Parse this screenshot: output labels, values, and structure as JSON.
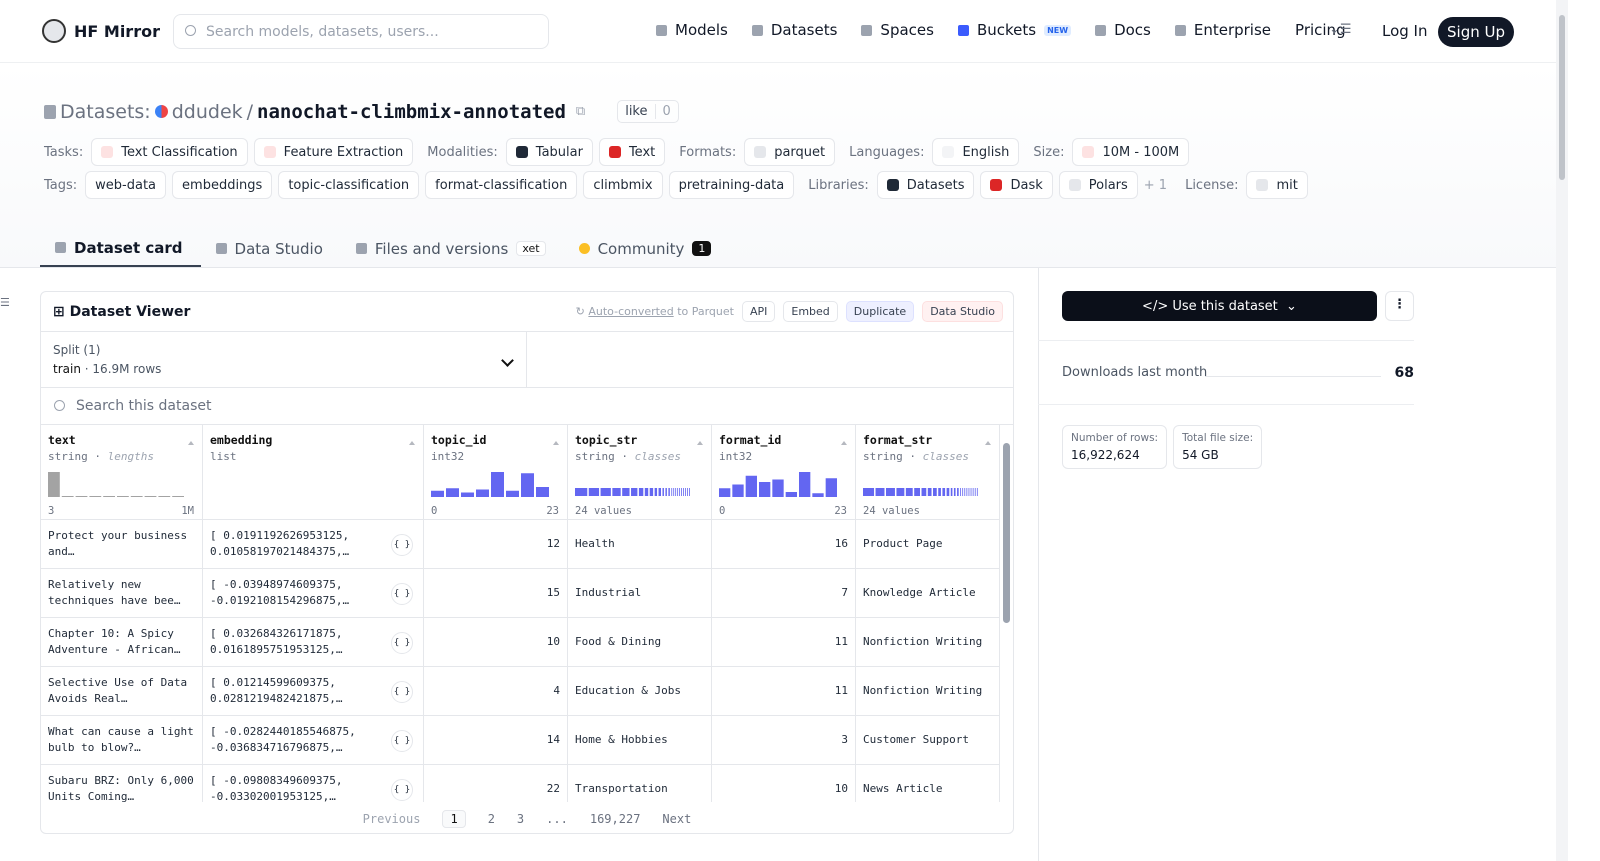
{
  "nav": {
    "brand": "HF Mirror",
    "search_placeholder": "Search models, datasets, users...",
    "links": [
      "Models",
      "Datasets",
      "Spaces",
      "Buckets",
      "Docs",
      "Enterprise",
      "Pricing"
    ],
    "new_badge": "NEW",
    "login": "Log In",
    "signup": "Sign Up"
  },
  "header": {
    "prefix": "Datasets:",
    "owner": "ddudek",
    "sep": "/",
    "name": "nanochat-climbmix-annotated",
    "like": "like",
    "likes": 0
  },
  "meta": {
    "rows": [
      [
        {
          "label": "Tasks:",
          "items": [
            "Text Classification",
            "Feature Extraction"
          ]
        },
        {
          "label": "Modalities:",
          "items": [
            "Tabular",
            "Text"
          ]
        },
        {
          "label": "Formats:",
          "items": [
            "parquet"
          ]
        },
        {
          "label": "Languages:",
          "items": [
            "English"
          ]
        },
        {
          "label": "Size:",
          "items": [
            "10M - 100M"
          ]
        }
      ],
      [
        {
          "label": "Tags:",
          "items": [
            "web-data",
            "embeddings",
            "topic-classification",
            "format-classification",
            "climbmix",
            "pretraining-data"
          ]
        },
        {
          "label": "Libraries:",
          "items": [
            "Datasets",
            "Dask",
            "Polars"
          ],
          "more": "+ 1"
        },
        {
          "label": "License:",
          "items": [
            "mit"
          ]
        }
      ]
    ]
  },
  "tabs": [
    {
      "label": "Dataset card"
    },
    {
      "label": "Data Studio"
    },
    {
      "label": "Files and versions",
      "badge": "xet"
    },
    {
      "label": "Community",
      "badge": 1
    }
  ],
  "viewer": {
    "title": "Dataset Viewer",
    "autoconverted": "Auto-converted",
    "autoconverted_suffix": "to Parquet",
    "actions": [
      "API",
      "Embed",
      "Duplicate",
      "Data Studio"
    ],
    "split_label": "Split (1)",
    "split_name": "train",
    "split_sep": "·",
    "split_rows": "16.9M rows",
    "search": "Search this dataset",
    "type_sep": "·",
    "columns": [
      {
        "name": "text",
        "type": "string",
        "stat": "lengths",
        "min": "3",
        "max": "1M",
        "bars": [
          100,
          4,
          4,
          4,
          4,
          4,
          4,
          4,
          4,
          4
        ]
      },
      {
        "name": "embedding",
        "type": "list"
      },
      {
        "name": "topic_id",
        "type": "int32",
        "min": "0",
        "max": "23",
        "bars": [
          25,
          35,
          18,
          30,
          100,
          25,
          95,
          40
        ]
      },
      {
        "name": "topic_str",
        "type": "string",
        "stat": "classes",
        "summary": "24 values",
        "classes": [
          14,
          12,
          12,
          10,
          9,
          8,
          6,
          5,
          5,
          4,
          4,
          3,
          3,
          3,
          2,
          2,
          2,
          2,
          2,
          2,
          2,
          2,
          2,
          2
        ]
      },
      {
        "name": "format_id",
        "type": "int32",
        "min": "0",
        "max": "23",
        "bars": [
          35,
          50,
          85,
          60,
          70,
          20,
          100,
          15,
          75
        ]
      },
      {
        "name": "format_str",
        "type": "string",
        "stat": "classes",
        "summary": "24 values",
        "classes": [
          12,
          10,
          10,
          9,
          8,
          7,
          6,
          5,
          5,
          4,
          4,
          4,
          3,
          3,
          3,
          2,
          2,
          2,
          2,
          2,
          2,
          2,
          2,
          2
        ]
      }
    ],
    "rows": [
      [
        "Protect your business and…",
        "[ 0.0191192626953125, 0.01058197021484375,…",
        12,
        "Health",
        16,
        "Product Page"
      ],
      [
        "Relatively new techniques have bee…",
        "[ -0.03948974609375, -0.0192108154296875,…",
        15,
        "Industrial",
        7,
        "Knowledge Article"
      ],
      [
        "Chapter 10: A Spicy Adventure - African…",
        "[ 0.032684326171875, 0.0161895751953125,…",
        10,
        "Food & Dining",
        11,
        "Nonfiction Writing"
      ],
      [
        "Selective Use of Data Avoids Real…",
        "[ 0.01214599609375, 0.0281219482421875,…",
        4,
        "Education & Jobs",
        11,
        "Nonfiction Writing"
      ],
      [
        "What can cause a light bulb to blow?…",
        "[ -0.0282440185546875, -0.036834716796875,…",
        14,
        "Home & Hobbies",
        3,
        "Customer Support"
      ],
      [
        "Subaru BRZ: Only 6,000 Units Coming…",
        "[ -0.09808349609375, -0.03302001953125,…",
        22,
        "Transportation",
        10,
        "News Article"
      ]
    ],
    "pagination": {
      "previous": "Previous",
      "pages": [
        1,
        2,
        3
      ],
      "ellipsis": "...",
      "last": "169,227",
      "next": "Next"
    }
  },
  "sidebar": {
    "use": "Use this dataset",
    "downloads_label": "Downloads last month",
    "downloads": 68,
    "stats": [
      {
        "label": "Number of rows:",
        "value": "16,922,624"
      },
      {
        "label": "Total file size:",
        "value": "54 GB"
      }
    ]
  }
}
